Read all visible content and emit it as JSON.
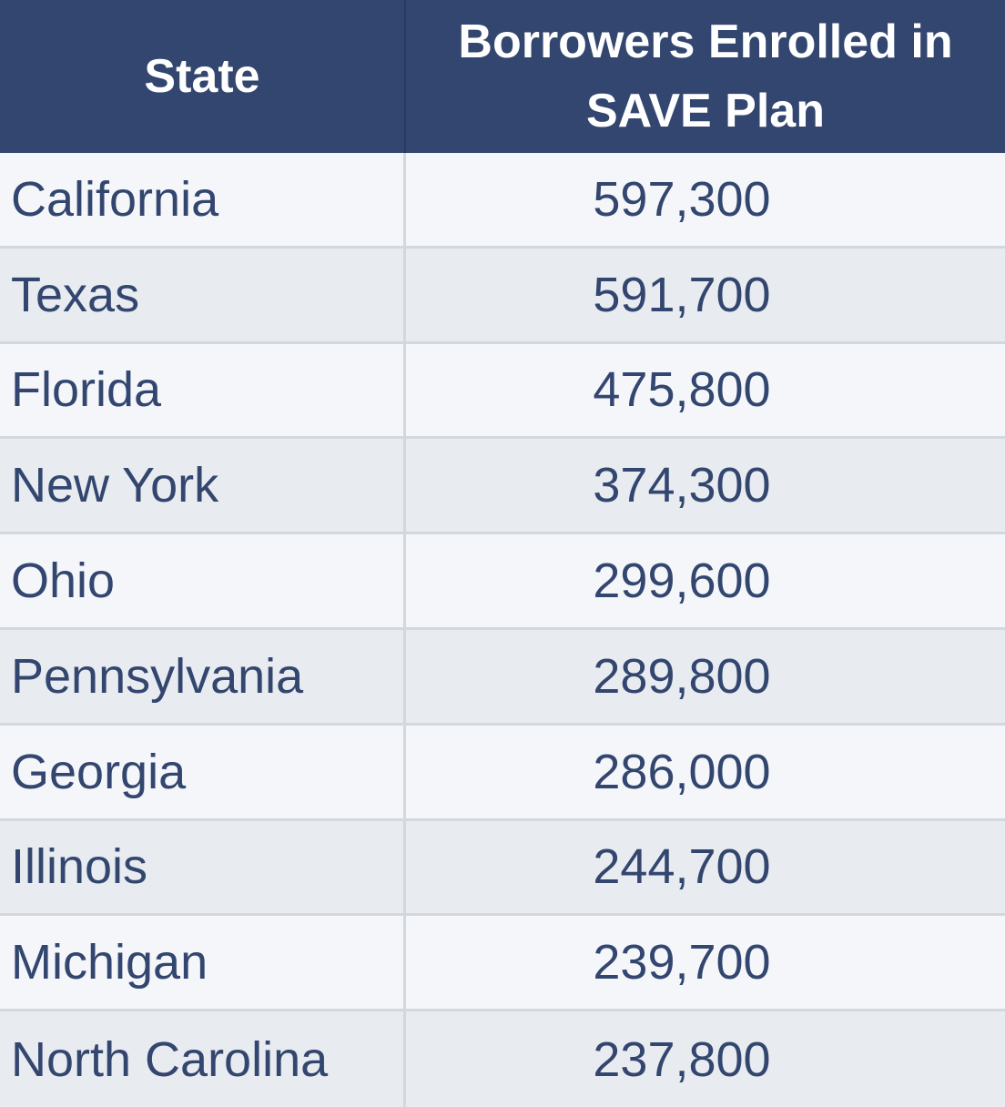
{
  "table": {
    "header": {
      "state": "State",
      "enrolled_line1": "Borrowers Enrolled in",
      "enrolled_line2": "SAVE Plan"
    },
    "rows": [
      {
        "state": "California",
        "enrolled": "597,300"
      },
      {
        "state": "Texas",
        "enrolled": "591,700"
      },
      {
        "state": "Florida",
        "enrolled": "475,800"
      },
      {
        "state": "New York",
        "enrolled": "374,300"
      },
      {
        "state": "Ohio",
        "enrolled": "299,600"
      },
      {
        "state": "Pennsylvania",
        "enrolled": "289,800"
      },
      {
        "state": "Georgia",
        "enrolled": "286,000"
      },
      {
        "state": "Illinois",
        "enrolled": "244,700"
      },
      {
        "state": "Michigan",
        "enrolled": "239,700"
      },
      {
        "state": "North Carolina",
        "enrolled": "237,800"
      }
    ]
  },
  "colors": {
    "header_bg": "#33466f",
    "header_text": "#ffffff",
    "body_text": "#33466f",
    "row_odd": "#f4f6fa",
    "row_even": "#e8ebef"
  }
}
